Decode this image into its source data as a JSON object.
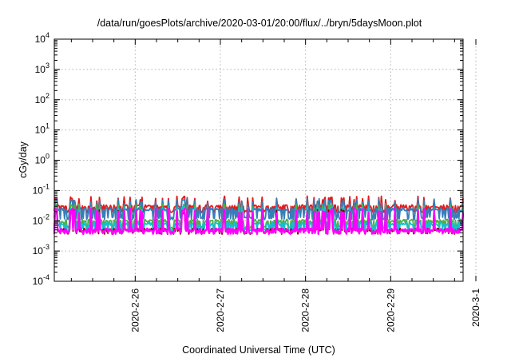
{
  "chart_data": {
    "type": "line",
    "title": "/data/run/goesPlots/archive/2020-03-01/20:00/flux/../bryn/5daysMoon.plot",
    "xlabel": "Coordinated Universal Time (UTC)",
    "ylabel": "cGy/day",
    "yscale": "log",
    "ylim_exponents": [
      -4,
      4
    ],
    "y_tick_base": "10",
    "y_tick_exponents": [
      "-4",
      "-3",
      "-2",
      "-1",
      "0",
      "1",
      "2",
      "3",
      "4"
    ],
    "x_range_days": [
      -0.95,
      3.85
    ],
    "x_tick_labels": [
      "2020-2-26",
      "2020-2-27",
      "2020-2-28",
      "2020-2-29",
      "2020-3-1"
    ],
    "x_tick_days": [
      0,
      1,
      2,
      3,
      4
    ],
    "grid": true,
    "series": [
      {
        "color": "#e41a1c",
        "baseline": 0.03,
        "spike_peak": 0.055,
        "valley": 0.02,
        "spikes_per_day": 14
      },
      {
        "color": "#377eb8",
        "baseline": 0.024,
        "spike_peak": 0.045,
        "valley": 0.012,
        "spikes_per_day": 14
      },
      {
        "color": "#4daf4a",
        "baseline": 0.01,
        "spike_peak": 0.03,
        "valley": 0.006,
        "spikes_per_day": 14
      },
      {
        "color": "#17becf",
        "baseline": 0.008,
        "spike_peak": 0.025,
        "valley": 0.005,
        "spikes_per_day": 14
      },
      {
        "color": "#8b0000",
        "baseline": 0.005,
        "spike_peak": 0.02,
        "valley": 0.004,
        "spikes_per_day": 14
      },
      {
        "color": "#ff00ff",
        "baseline": 0.005,
        "spike_peak": 0.022,
        "valley": 0.004,
        "spikes_per_day": 14
      }
    ]
  }
}
